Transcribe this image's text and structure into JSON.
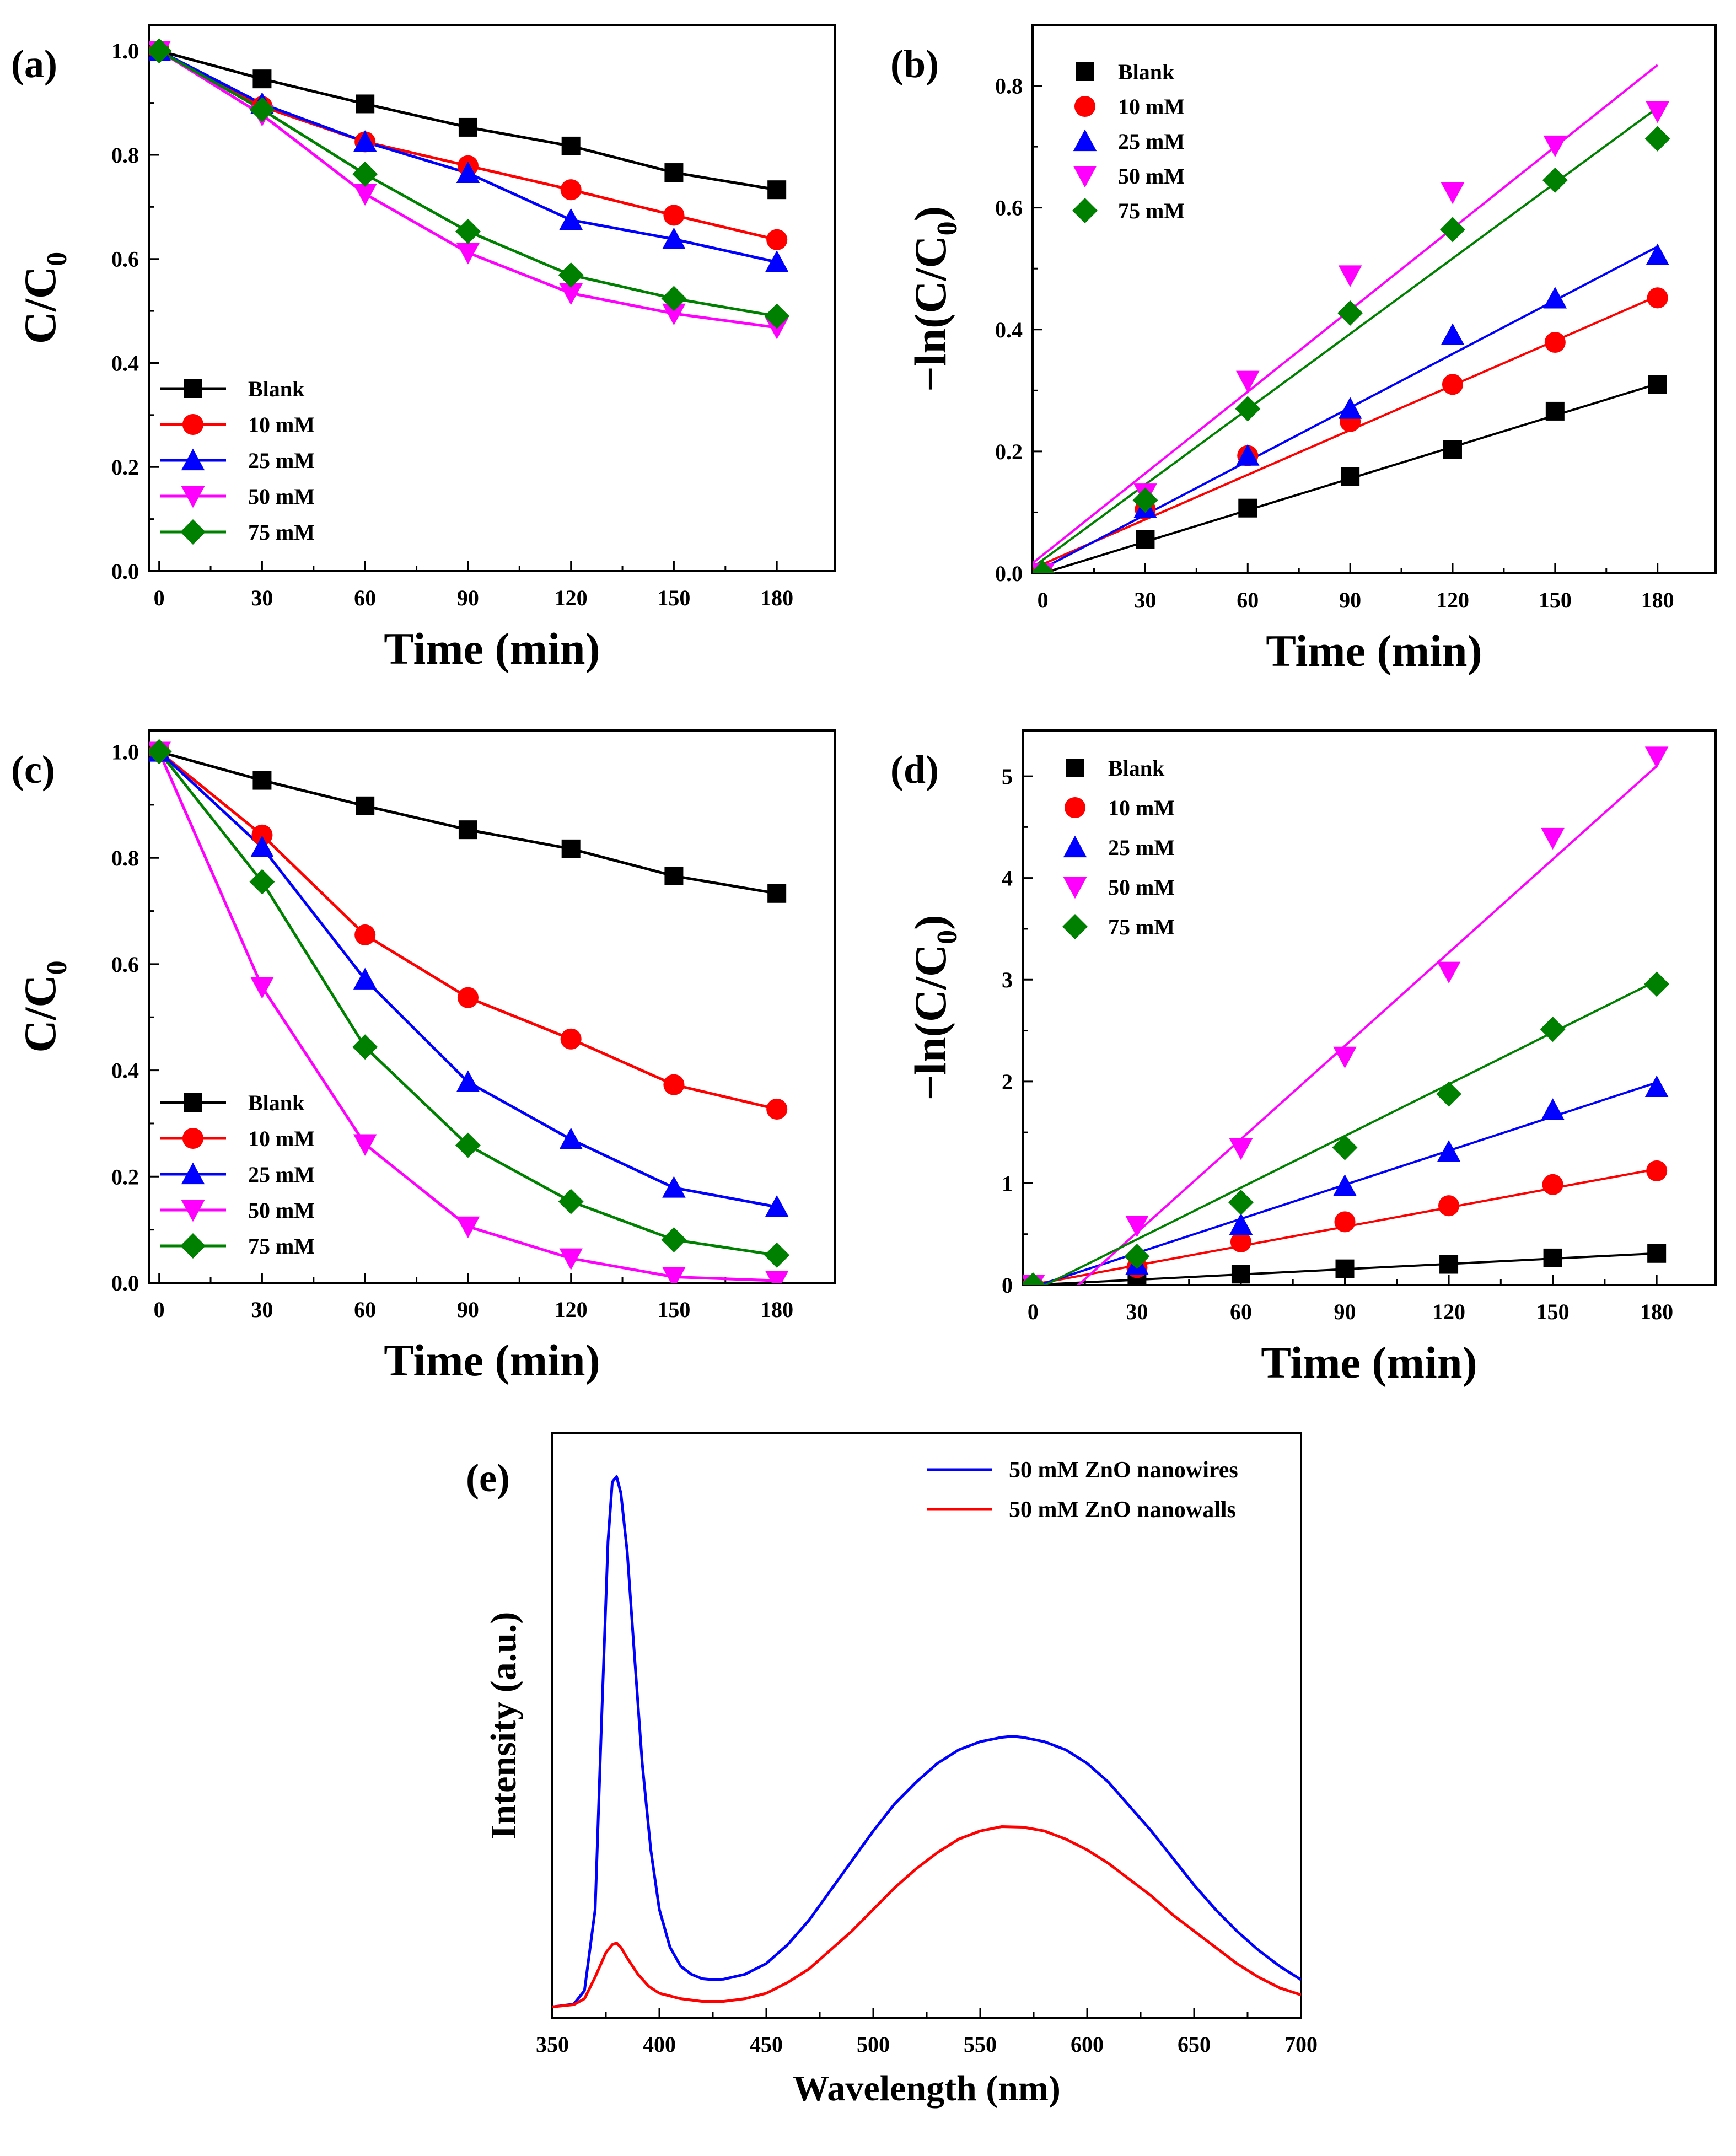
{
  "chart_data": [
    {
      "panel": "(a)",
      "type": "line",
      "xlabel": "Time (min)",
      "ylabel": "C/C0",
      "ylabel_main": "C/C",
      "ylabel_sub": "0",
      "xlim": [
        -3,
        197
      ],
      "ylim": [
        0,
        1.05
      ],
      "xticks": [
        0,
        30,
        60,
        90,
        120,
        150,
        180
      ],
      "yticks": [
        0.0,
        0.2,
        0.4,
        0.6,
        0.8,
        1.0
      ],
      "ytick_decimals": 1,
      "fit_lines": false,
      "legend_position": "bottom-left",
      "x": [
        0,
        30,
        60,
        90,
        120,
        150,
        180
      ],
      "series": [
        {
          "name": "Blank",
          "color": "#000000",
          "marker": "square",
          "values": [
            1.0,
            0.946,
            0.898,
            0.853,
            0.817,
            0.766,
            0.733
          ]
        },
        {
          "name": "10 mM",
          "color": "#ff0000",
          "marker": "circle",
          "values": [
            1.0,
            0.893,
            0.825,
            0.779,
            0.733,
            0.684,
            0.637
          ]
        },
        {
          "name": "25 mM",
          "color": "#0000ff",
          "marker": "triangle-up",
          "values": [
            1.0,
            0.898,
            0.825,
            0.765,
            0.675,
            0.638,
            0.594
          ]
        },
        {
          "name": "50 mM",
          "color": "#ff00ff",
          "marker": "triangle-down",
          "values": [
            1.0,
            0.877,
            0.725,
            0.612,
            0.534,
            0.495,
            0.468
          ]
        },
        {
          "name": "75 mM",
          "color": "#008000",
          "marker": "diamond",
          "values": [
            1.0,
            0.887,
            0.763,
            0.653,
            0.569,
            0.524,
            0.49
          ]
        }
      ]
    },
    {
      "panel": "(b)",
      "type": "scatter",
      "xlabel": "Time (min)",
      "ylabel": "−ln(C/C0)",
      "ylabel_main": "−ln(C/C",
      "ylabel_sub": "0",
      "ylabel_end": ")",
      "xlim": [
        -3,
        197
      ],
      "ylim": [
        0,
        0.9
      ],
      "xticks": [
        0,
        30,
        60,
        90,
        120,
        150,
        180
      ],
      "yticks": [
        0.0,
        0.2,
        0.4,
        0.6,
        0.8
      ],
      "ytick_decimals": 1,
      "fit_lines": true,
      "legend_position": "top-left",
      "x": [
        0,
        30,
        60,
        90,
        120,
        150,
        180
      ],
      "series": [
        {
          "name": "Blank",
          "color": "#000000",
          "marker": "square",
          "values": [
            0.0,
            0.056,
            0.107,
            0.159,
            0.203,
            0.266,
            0.31
          ],
          "fit": [
            0.0,
            0.311
          ]
        },
        {
          "name": "10 mM",
          "color": "#ff0000",
          "marker": "circle",
          "values": [
            0.0,
            0.105,
            0.193,
            0.249,
            0.31,
            0.379,
            0.452
          ],
          "fit": [
            0.015,
            0.455
          ]
        },
        {
          "name": "25 mM",
          "color": "#0000ff",
          "marker": "triangle-up",
          "values": [
            0.0,
            0.107,
            0.193,
            0.27,
            0.391,
            0.451,
            0.522
          ],
          "fit": [
            0.008,
            0.536
          ]
        },
        {
          "name": "50 mM",
          "color": "#ff00ff",
          "marker": "triangle-down",
          "values": [
            0.0,
            0.131,
            0.316,
            0.489,
            0.625,
            0.702,
            0.758
          ],
          "fit": [
            0.03,
            0.834
          ]
        },
        {
          "name": "75 mM",
          "color": "#008000",
          "marker": "diamond",
          "values": [
            0.0,
            0.12,
            0.27,
            0.427,
            0.564,
            0.645,
            0.713
          ],
          "fit": [
            0.022,
            0.764
          ]
        }
      ]
    },
    {
      "panel": "(c)",
      "type": "line",
      "xlabel": "Time (min)",
      "ylabel": "C/C0",
      "ylabel_main": "C/C",
      "ylabel_sub": "0",
      "xlim": [
        -3,
        197
      ],
      "ylim": [
        0,
        1.04
      ],
      "xticks": [
        0,
        30,
        60,
        90,
        120,
        150,
        180
      ],
      "yticks": [
        0.0,
        0.2,
        0.4,
        0.6,
        0.8,
        1.0
      ],
      "ytick_decimals": 1,
      "fit_lines": false,
      "legend_position": "bottom-left",
      "x": [
        0,
        30,
        60,
        90,
        120,
        150,
        180
      ],
      "series": [
        {
          "name": "Blank",
          "color": "#000000",
          "marker": "square",
          "values": [
            1.0,
            0.946,
            0.898,
            0.853,
            0.817,
            0.766,
            0.733
          ]
        },
        {
          "name": "10 mM",
          "color": "#ff0000",
          "marker": "circle",
          "values": [
            1.0,
            0.843,
            0.655,
            0.537,
            0.459,
            0.373,
            0.327
          ]
        },
        {
          "name": "25 mM",
          "color": "#0000ff",
          "marker": "triangle-up",
          "values": [
            1.0,
            0.82,
            0.571,
            0.378,
            0.27,
            0.179,
            0.143
          ]
        },
        {
          "name": "50 mM",
          "color": "#ff00ff",
          "marker": "triangle-down",
          "values": [
            1.0,
            0.557,
            0.261,
            0.106,
            0.046,
            0.011,
            0.004
          ]
        },
        {
          "name": "75 mM",
          "color": "#008000",
          "marker": "diamond",
          "values": [
            1.0,
            0.755,
            0.444,
            0.259,
            0.153,
            0.081,
            0.052
          ]
        }
      ]
    },
    {
      "panel": "(d)",
      "type": "scatter",
      "xlabel": "Time (min)",
      "ylabel": "−ln(C/C0)",
      "ylabel_main": "−ln(C/C",
      "ylabel_sub": "0",
      "ylabel_end": ")",
      "xlim": [
        -3,
        197
      ],
      "ylim": [
        0,
        5.45
      ],
      "xticks": [
        0,
        30,
        60,
        90,
        120,
        150,
        180
      ],
      "yticks": [
        0,
        1,
        2,
        3,
        4,
        5
      ],
      "ytick_decimals": 0,
      "fit_lines": true,
      "legend_position": "top-left",
      "x": [
        0,
        30,
        60,
        90,
        120,
        150,
        180
      ],
      "series": [
        {
          "name": "Blank",
          "color": "#000000",
          "marker": "square",
          "values": [
            0.0,
            0.055,
            0.107,
            0.159,
            0.203,
            0.266,
            0.31
          ],
          "fit": [
            0.0,
            0.311
          ]
        },
        {
          "name": "10 mM",
          "color": "#ff0000",
          "marker": "circle",
          "values": [
            0.0,
            0.171,
            0.423,
            0.621,
            0.779,
            0.987,
            1.122
          ],
          "fit": [
            0.005,
            1.14
          ]
        },
        {
          "name": "25 mM",
          "color": "#0000ff",
          "marker": "triangle-up",
          "values": [
            0.0,
            0.198,
            0.591,
            0.973,
            1.309,
            1.72,
            1.945
          ],
          "fit": [
            -0.02,
            1.99
          ]
        },
        {
          "name": "50 mM",
          "color": "#ff00ff",
          "marker": "triangle-down",
          "values": [
            0.0,
            0.585,
            1.343,
            2.244,
            3.079,
            4.394,
            5.193
          ],
          "fit": [
            -0.4,
            5.1
          ]
        },
        {
          "name": "75 mM",
          "color": "#008000",
          "marker": "diamond",
          "values": [
            0.0,
            0.281,
            0.812,
            1.351,
            1.877,
            2.513,
            2.956
          ],
          "fit": [
            -0.06,
            2.99
          ]
        }
      ]
    },
    {
      "panel": "(e)",
      "type": "line",
      "xlabel": "Wavelength (nm)",
      "ylabel": "Intensity (a.u.)",
      "xlim": [
        350,
        700
      ],
      "ylim": [
        0,
        1.08
      ],
      "xticks": [
        350,
        400,
        450,
        500,
        550,
        600,
        650,
        700
      ],
      "yticks": [],
      "legend_position": "top-right",
      "series": [
        {
          "name": "50 mM ZnO nanowires",
          "color": "#0000ff",
          "x": [
            350,
            360,
            365,
            370,
            373,
            376,
            378,
            380,
            382,
            385,
            388,
            392,
            396,
            400,
            405,
            410,
            415,
            420,
            425,
            430,
            440,
            450,
            460,
            470,
            480,
            490,
            500,
            510,
            520,
            530,
            540,
            550,
            560,
            565,
            570,
            580,
            590,
            600,
            610,
            620,
            630,
            640,
            650,
            660,
            670,
            680,
            690,
            700
          ],
          "y": [
            0.02,
            0.025,
            0.05,
            0.2,
            0.55,
            0.88,
            0.99,
            1.0,
            0.97,
            0.86,
            0.69,
            0.47,
            0.31,
            0.2,
            0.13,
            0.095,
            0.08,
            0.072,
            0.07,
            0.071,
            0.08,
            0.1,
            0.135,
            0.18,
            0.235,
            0.29,
            0.345,
            0.395,
            0.435,
            0.47,
            0.495,
            0.51,
            0.518,
            0.52,
            0.518,
            0.51,
            0.495,
            0.47,
            0.435,
            0.39,
            0.345,
            0.295,
            0.245,
            0.2,
            0.16,
            0.125,
            0.095,
            0.07
          ]
        },
        {
          "name": "50 mM ZnO nanowalls",
          "color": "#ff0000",
          "x": [
            350,
            360,
            365,
            370,
            375,
            378,
            380,
            382,
            385,
            390,
            395,
            400,
            410,
            420,
            430,
            440,
            450,
            460,
            470,
            480,
            490,
            500,
            510,
            520,
            530,
            540,
            550,
            560,
            570,
            580,
            590,
            600,
            610,
            620,
            630,
            640,
            650,
            660,
            670,
            680,
            690,
            700
          ],
          "y": [
            0.02,
            0.024,
            0.035,
            0.075,
            0.12,
            0.135,
            0.138,
            0.13,
            0.11,
            0.08,
            0.058,
            0.045,
            0.035,
            0.03,
            0.03,
            0.035,
            0.045,
            0.065,
            0.09,
            0.125,
            0.16,
            0.2,
            0.24,
            0.275,
            0.305,
            0.33,
            0.345,
            0.353,
            0.352,
            0.345,
            0.33,
            0.31,
            0.285,
            0.255,
            0.225,
            0.19,
            0.16,
            0.13,
            0.1,
            0.075,
            0.055,
            0.042
          ]
        }
      ]
    }
  ]
}
